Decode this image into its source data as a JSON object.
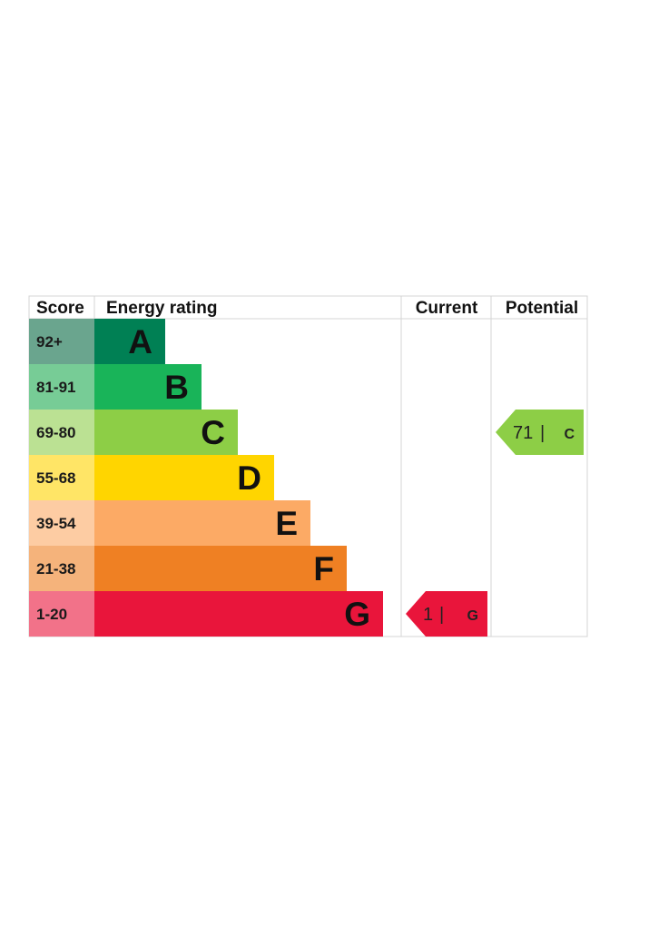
{
  "chart_data": {
    "type": "bar",
    "headers": {
      "score": "Score",
      "rating": "Energy rating",
      "current": "Current",
      "potential": "Potential"
    },
    "bands": [
      {
        "score": "92+",
        "letter": "A",
        "color": "#008054",
        "score_bg": "#6aa58e"
      },
      {
        "score": "81-91",
        "letter": "B",
        "color": "#19b459",
        "score_bg": "#77cc96"
      },
      {
        "score": "69-80",
        "letter": "C",
        "color": "#8dce46",
        "score_bg": "#bbe193"
      },
      {
        "score": "55-68",
        "letter": "D",
        "color": "#ffd500",
        "score_bg": "#ffe566"
      },
      {
        "score": "39-54",
        "letter": "E",
        "color": "#fcaa65",
        "score_bg": "#fdcca3"
      },
      {
        "score": "21-38",
        "letter": "F",
        "color": "#ef8023",
        "score_bg": "#f5b37b"
      },
      {
        "score": "1-20",
        "letter": "G",
        "color": "#e9153b",
        "score_bg": "#f27289"
      }
    ],
    "current": {
      "value": 1,
      "separator": "|",
      "letter": "G",
      "color": "#e9153b"
    },
    "potential": {
      "value": 71,
      "separator": "|",
      "letter": "C",
      "color": "#8dce46"
    }
  }
}
